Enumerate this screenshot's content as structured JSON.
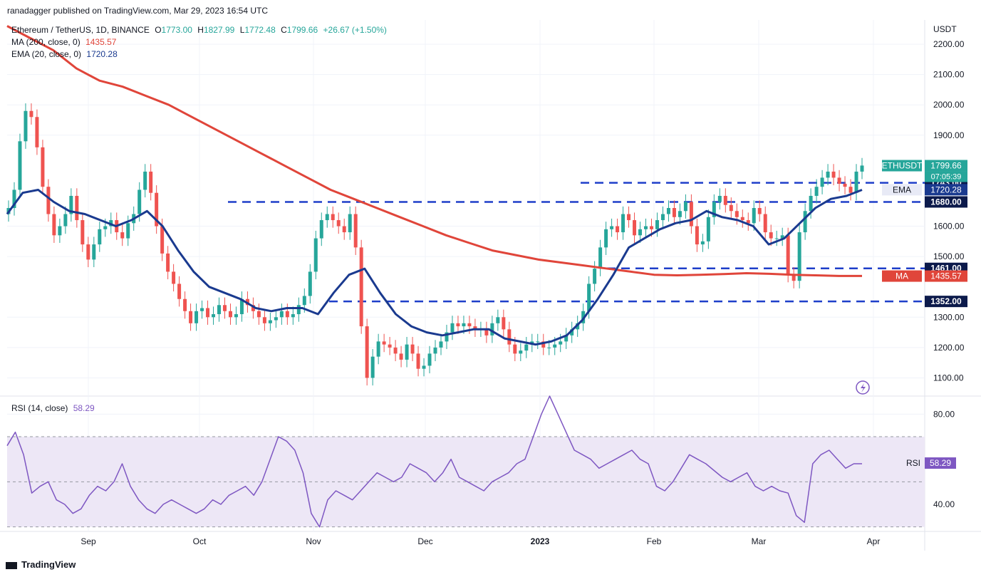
{
  "header": {
    "publisher": "ranadagger published on TradingView.com, Mar 29, 2023 16:54 UTC"
  },
  "legend": {
    "symbol": "Ethereum / TetherUS, 1D, BINANCE",
    "o_label": "O",
    "o_value": "1773.00",
    "h_label": "H",
    "h_value": "1827.99",
    "l_label": "L",
    "l_value": "1772.48",
    "c_label": "C",
    "c_value": "1799.66",
    "change": "+26.67 (+1.50%)",
    "ma_label": "MA (200, close, 0)",
    "ma_value": "1435.57",
    "ema_label": "EMA (20, close, 0)",
    "ema_value": "1720.28",
    "rsi_label": "RSI (14, close)",
    "rsi_value": "58.29"
  },
  "footer": {
    "brand": "TradingView"
  },
  "colors": {
    "up": "#26a69a",
    "down": "#ef5350",
    "ma": "#e0453a",
    "ema": "#1a3a8f",
    "rsi": "#7e57c2",
    "rsi_band": "#ede7f6",
    "level": "#1e3ec9",
    "grid": "#f0f3fa"
  },
  "chart_data": [
    {
      "type": "candlestick",
      "title": "Ethereum / TetherUS, 1D, BINANCE",
      "y_axis_unit": "USDT",
      "y_ticks": [
        "2200.00",
        "2100.00",
        "2000.00",
        "1900.00",
        "1600.00",
        "1500.00",
        "1300.00",
        "1200.00",
        "1100.00"
      ],
      "ylim": [
        1040,
        2280
      ],
      "x_ticks": [
        "Sep",
        "Oct",
        "Nov",
        "Dec",
        "2023",
        "Feb",
        "Mar",
        "Apr"
      ],
      "horizontal_levels": [
        {
          "value": 1743.0,
          "label": "1743.00"
        },
        {
          "value": 1680.0,
          "label": "1680.00"
        },
        {
          "value": 1461.0,
          "label": "1461.00"
        },
        {
          "value": 1352.0,
          "label": "1352.00"
        }
      ],
      "price_tags": [
        {
          "name": "ETHUSDT",
          "value": 1799.66,
          "label": "1799.66",
          "sub": "07:05:39"
        },
        {
          "name": "EMA",
          "value": 1720.28,
          "label": "1720.28"
        },
        {
          "name": "MA",
          "value": 1435.57,
          "label": "1435.57"
        }
      ],
      "close_approx": [
        1660,
        1720,
        1880,
        1980,
        1960,
        1860,
        1730,
        1640,
        1570,
        1600,
        1640,
        1700,
        1620,
        1540,
        1490,
        1540,
        1590,
        1600,
        1620,
        1580,
        1560,
        1610,
        1640,
        1720,
        1780,
        1710,
        1600,
        1510,
        1450,
        1410,
        1360,
        1320,
        1280,
        1320,
        1330,
        1300,
        1310,
        1340,
        1320,
        1300,
        1310,
        1360,
        1340,
        1320,
        1300,
        1280,
        1290,
        1300,
        1320,
        1300,
        1310,
        1340,
        1370,
        1450,
        1560,
        1620,
        1640,
        1620,
        1600,
        1580,
        1640,
        1530,
        1270,
        1100,
        1170,
        1220,
        1210,
        1200,
        1180,
        1160,
        1210,
        1180,
        1130,
        1140,
        1180,
        1200,
        1220,
        1250,
        1280,
        1270,
        1280,
        1270,
        1260,
        1260,
        1240,
        1280,
        1300,
        1260,
        1210,
        1180,
        1190,
        1210,
        1220,
        1220,
        1200,
        1200,
        1210,
        1220,
        1240,
        1260,
        1280,
        1320,
        1410,
        1460,
        1530,
        1590,
        1600,
        1580,
        1640,
        1620,
        1570,
        1590,
        1600,
        1590,
        1620,
        1640,
        1660,
        1630,
        1650,
        1680,
        1600,
        1540,
        1550,
        1630,
        1680,
        1700,
        1670,
        1650,
        1630,
        1620,
        1610,
        1660,
        1640,
        1580,
        1560,
        1560,
        1570,
        1440,
        1420,
        1580,
        1650,
        1700,
        1730,
        1760,
        1780,
        1760,
        1740,
        1730,
        1710,
        1780,
        1800
      ],
      "ma200_approx": [
        2260,
        2220,
        2180,
        2120,
        2080,
        2060,
        2030,
        2000,
        1960,
        1920,
        1880,
        1840,
        1800,
        1760,
        1720,
        1690,
        1660,
        1630,
        1600,
        1570,
        1545,
        1520,
        1505,
        1490,
        1480,
        1470,
        1460,
        1450,
        1440,
        1438,
        1440,
        1442,
        1445,
        1443,
        1440,
        1438,
        1436,
        1436
      ],
      "ema20_approx": [
        1640,
        1710,
        1720,
        1680,
        1650,
        1640,
        1620,
        1600,
        1620,
        1650,
        1600,
        1520,
        1450,
        1400,
        1380,
        1360,
        1330,
        1320,
        1330,
        1330,
        1310,
        1380,
        1440,
        1460,
        1380,
        1310,
        1270,
        1250,
        1240,
        1250,
        1260,
        1260,
        1230,
        1220,
        1210,
        1220,
        1240,
        1290,
        1360,
        1440,
        1530,
        1560,
        1590,
        1610,
        1620,
        1650,
        1630,
        1620,
        1600,
        1540,
        1560,
        1610,
        1660,
        1690,
        1700,
        1720
      ]
    },
    {
      "type": "line",
      "title": "RSI (14, close)",
      "y_ticks": [
        "80.00",
        "40.00"
      ],
      "ylim": [
        28,
        88
      ],
      "bands": [
        30,
        50,
        70
      ],
      "series": [
        {
          "values": [
            66,
            72,
            62,
            45,
            48,
            50,
            42,
            40,
            36,
            38,
            44,
            48,
            46,
            50,
            58,
            48,
            42,
            38,
            36,
            40,
            42,
            40,
            38,
            36,
            38,
            42,
            40,
            44,
            46,
            48,
            44,
            50,
            60,
            70,
            68,
            64,
            54,
            36,
            30,
            42,
            46,
            44,
            42,
            46,
            50,
            54,
            52,
            50,
            52,
            58,
            56,
            54,
            50,
            54,
            60,
            52,
            50,
            48,
            46,
            50,
            52,
            54,
            58,
            60,
            70,
            80,
            88,
            80,
            72,
            64,
            62,
            60,
            56,
            58,
            60,
            62,
            64,
            60,
            58,
            48,
            46,
            50,
            56,
            62,
            60,
            58,
            55,
            52,
            50,
            52,
            54,
            48,
            46,
            48,
            46,
            45,
            35,
            32,
            58,
            62,
            64,
            60,
            56,
            58,
            58
          ]
        }
      ]
    }
  ]
}
